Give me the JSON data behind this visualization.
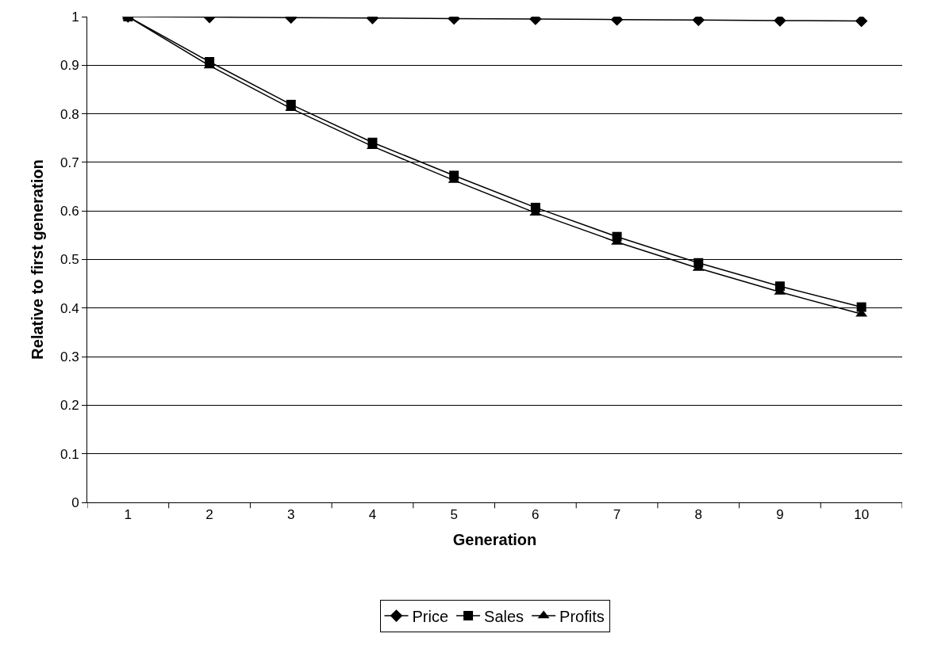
{
  "chart_data": {
    "type": "line",
    "xlabel": "Generation",
    "ylabel": "Relative to first generation",
    "categories": [
      "1",
      "2",
      "3",
      "4",
      "5",
      "6",
      "7",
      "8",
      "9",
      "10"
    ],
    "series": [
      {
        "name": "Price",
        "color": "#000000",
        "marker": "diamond",
        "values": [
          1,
          0.999,
          0.998,
          0.997,
          0.996,
          0.995,
          0.994,
          0.993,
          0.992,
          0.991
        ]
      },
      {
        "name": "Sales",
        "color": "#000000",
        "marker": "square",
        "values": [
          1,
          0.907,
          0.819,
          0.741,
          0.673,
          0.607,
          0.547,
          0.493,
          0.445,
          0.402
        ]
      },
      {
        "name": "Profits",
        "color": "#000000",
        "marker": "triangle",
        "values": [
          1,
          0.899,
          0.811,
          0.733,
          0.663,
          0.596,
          0.536,
          0.482,
          0.433,
          0.388
        ]
      }
    ],
    "ylim": [
      0,
      1
    ],
    "yticks": [
      0,
      0.1,
      0.2,
      0.3,
      0.4,
      0.5,
      0.6,
      0.7,
      0.8,
      0.9,
      1
    ],
    "grid": "y",
    "legend": "bottom",
    "line_style": "solid"
  }
}
